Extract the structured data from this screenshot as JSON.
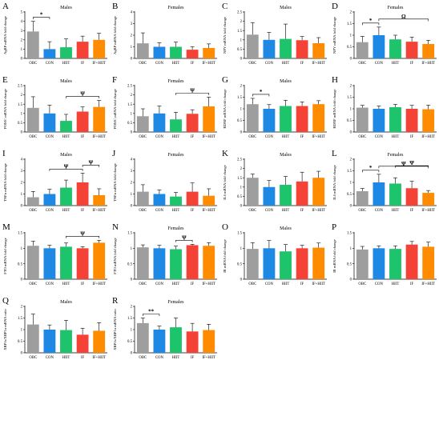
{
  "colors": {
    "OBC": "#9e9e9e",
    "CON": "#1e88e5",
    "HIIT": "#1ec46b",
    "IF": "#f44336",
    "IF+HIIT": "#ff8c00"
  },
  "chart_data": [
    {
      "type": "bar",
      "letter": "A",
      "title": "Males",
      "ylabel": "AgRP mRNA fold change",
      "ylim": [
        0,
        5
      ],
      "yticks": [
        0,
        1,
        2,
        3,
        4,
        5
      ],
      "categories": [
        "OBC",
        "CON",
        "HIIT",
        "IF",
        "IF+HIIT"
      ],
      "values": [
        2.9,
        1.0,
        1.2,
        1.8,
        2.0
      ],
      "errors": [
        1.1,
        0.8,
        0.9,
        0.6,
        0.7
      ],
      "annotations": [
        {
          "from": 0,
          "to": 1,
          "label": "*"
        }
      ]
    },
    {
      "type": "bar",
      "letter": "B",
      "title": "Females",
      "ylabel": "AgRP mRNA fold change",
      "ylim": [
        0,
        4
      ],
      "yticks": [
        0,
        1,
        2,
        3,
        4
      ],
      "categories": [
        "OBC",
        "CON",
        "HIIT",
        "IF",
        "IF+HIIT"
      ],
      "values": [
        1.3,
        1.0,
        1.0,
        0.75,
        0.9
      ],
      "errors": [
        0.9,
        0.35,
        0.4,
        0.25,
        0.35
      ],
      "annotations": []
    },
    {
      "type": "bar",
      "letter": "C",
      "title": "Males",
      "ylabel": "NPY mRNA fold change",
      "ylim": [
        0,
        2.5
      ],
      "yticks": [
        0,
        0.5,
        1,
        1.5,
        2,
        2.5
      ],
      "categories": [
        "OBC",
        "CON",
        "HIIT",
        "IF",
        "IF+HIIT"
      ],
      "values": [
        1.28,
        1.0,
        1.05,
        0.98,
        0.82
      ],
      "errors": [
        0.65,
        0.4,
        0.8,
        0.2,
        0.3
      ],
      "annotations": []
    },
    {
      "type": "bar",
      "letter": "D",
      "title": "Females",
      "ylabel": "NPY mRNA fold change",
      "ylim": [
        0,
        2
      ],
      "yticks": [
        0,
        0.5,
        1,
        1.5,
        2
      ],
      "categories": [
        "OBC",
        "CON",
        "HIIT",
        "IF",
        "IF+HIIT"
      ],
      "values": [
        0.7,
        1.0,
        0.82,
        0.72,
        0.62
      ],
      "errors": [
        0.25,
        0.35,
        0.18,
        0.2,
        0.16
      ],
      "annotations": [
        {
          "from": 0,
          "to": 1,
          "label": "*"
        },
        {
          "from": 1,
          "to": 4,
          "label": "Ω"
        }
      ]
    },
    {
      "type": "bar",
      "letter": "E",
      "title": "Males",
      "ylabel": "POMC mRNA fold change",
      "ylim": [
        0,
        2.5
      ],
      "yticks": [
        0,
        0.5,
        1,
        1.5,
        2,
        2.5
      ],
      "categories": [
        "OBC",
        "CON",
        "HIIT",
        "IF",
        "IF+HIIT"
      ],
      "values": [
        1.3,
        1.0,
        0.6,
        1.1,
        1.35
      ],
      "errors": [
        0.6,
        0.45,
        0.35,
        0.25,
        0.35
      ],
      "annotations": [
        {
          "from": 2,
          "to": 4,
          "label": "Ψ"
        }
      ]
    },
    {
      "type": "bar",
      "letter": "F",
      "title": "Females",
      "ylabel": "POMC mRNA fold change",
      "ylim": [
        0,
        2.5
      ],
      "yticks": [
        0,
        0.5,
        1,
        1.5,
        2,
        2.5
      ],
      "categories": [
        "OBC",
        "CON",
        "HIIT",
        "IF",
        "IF+HIIT"
      ],
      "values": [
        0.85,
        1.0,
        0.68,
        0.98,
        1.38
      ],
      "errors": [
        0.4,
        0.4,
        0.38,
        0.22,
        0.5
      ],
      "annotations": [
        {
          "from": 2,
          "to": 4,
          "label": "Ψ"
        }
      ]
    },
    {
      "type": "bar",
      "letter": "G",
      "title": "Males",
      "ylabel": "BDNF mRNA fold change",
      "ylim": [
        0,
        2
      ],
      "yticks": [
        0,
        0.5,
        1,
        1.5,
        2
      ],
      "categories": [
        "OBC",
        "CON",
        "HIIT",
        "IF",
        "IF+HIIT"
      ],
      "values": [
        1.2,
        1.0,
        1.12,
        1.12,
        1.2
      ],
      "errors": [
        0.25,
        0.18,
        0.25,
        0.18,
        0.15
      ],
      "annotations": [
        {
          "from": 0,
          "to": 1,
          "label": "*"
        }
      ]
    },
    {
      "type": "bar",
      "letter": "H",
      "title": "",
      "ylabel": "BDNF mRNA fold change",
      "ylim": [
        0,
        2
      ],
      "yticks": [
        0,
        0.5,
        1,
        1.5,
        2
      ],
      "categories": [
        "OBC",
        "CON",
        "HIIT",
        "IF",
        "IF+HIIT"
      ],
      "values": [
        1.05,
        1.0,
        1.07,
        1.0,
        0.98
      ],
      "errors": [
        0.1,
        0.12,
        0.12,
        0.15,
        0.18
      ],
      "annotations": []
    },
    {
      "type": "bar",
      "letter": "I",
      "title": "Males",
      "ylabel": "TNFα mRNA fold change",
      "ylim": [
        0,
        4
      ],
      "yticks": [
        0,
        1,
        2,
        3,
        4
      ],
      "categories": [
        "OBC",
        "CON",
        "HIIT",
        "IF",
        "IF+HIIT"
      ],
      "values": [
        0.72,
        1.0,
        1.55,
        2.0,
        0.9
      ],
      "errors": [
        0.5,
        0.4,
        0.65,
        0.8,
        0.55
      ],
      "annotations": [
        {
          "from": 1,
          "to": 3,
          "label": "Ψ"
        },
        {
          "from": 3,
          "to": 4,
          "label": "Ψ"
        }
      ]
    },
    {
      "type": "bar",
      "letter": "J",
      "title": "Females",
      "ylabel": "TNFα mRNA fold change",
      "ylim": [
        0,
        4
      ],
      "yticks": [
        0,
        1,
        2,
        3,
        4
      ],
      "categories": [
        "OBC",
        "CON",
        "HIIT",
        "IF",
        "IF+HIIT"
      ],
      "values": [
        1.2,
        1.0,
        0.78,
        1.2,
        0.85
      ],
      "errors": [
        0.6,
        0.35,
        0.35,
        0.75,
        0.6
      ],
      "annotations": []
    },
    {
      "type": "bar",
      "letter": "K",
      "title": "Males",
      "ylabel": "IL6 mRNA fold change",
      "ylim": [
        0,
        2.5
      ],
      "yticks": [
        0,
        0.5,
        1,
        1.5,
        2,
        2.5
      ],
      "categories": [
        "OBC",
        "CON",
        "HIIT",
        "IF",
        "IF+HIIT"
      ],
      "values": [
        1.5,
        1.0,
        1.12,
        1.3,
        1.5
      ],
      "errors": [
        0.2,
        0.35,
        0.45,
        0.5,
        0.35
      ],
      "annotations": []
    },
    {
      "type": "bar",
      "letter": "L",
      "title": "Females",
      "ylabel": "IL6 mRNA fold change",
      "ylim": [
        0,
        2
      ],
      "yticks": [
        0,
        0.5,
        1,
        1.5,
        2
      ],
      "categories": [
        "OBC",
        "CON",
        "HIIT",
        "IF",
        "IF+HIIT"
      ],
      "values": [
        0.62,
        1.0,
        0.95,
        0.75,
        0.55
      ],
      "errors": [
        0.12,
        0.35,
        0.25,
        0.3,
        0.1
      ],
      "annotations": [
        {
          "from": 0,
          "to": 1,
          "label": "*"
        },
        {
          "from": 1,
          "to": 4,
          "label": "Ψ"
        },
        {
          "from": 2,
          "to": 4,
          "label": "Ψ"
        }
      ]
    },
    {
      "type": "bar",
      "letter": "M",
      "title": "",
      "ylabel": "FTO mRNA fold change",
      "ylim": [
        0,
        1.5
      ],
      "yticks": [
        0,
        0.5,
        1,
        1.5
      ],
      "categories": [
        "OBC",
        "CON",
        "HIIT",
        "IF",
        "IF+HIIT"
      ],
      "values": [
        1.08,
        1.0,
        1.05,
        1.0,
        1.18
      ],
      "errors": [
        0.15,
        0.1,
        0.12,
        0.05,
        0.08
      ],
      "annotations": [
        {
          "from": 2,
          "to": 4,
          "label": "Ψ"
        }
      ]
    },
    {
      "type": "bar",
      "letter": "N",
      "title": "Females",
      "ylabel": "FTO mRNA fold change",
      "ylim": [
        0,
        1.5
      ],
      "yticks": [
        0,
        0.5,
        1,
        1.5
      ],
      "categories": [
        "OBC",
        "CON",
        "HIIT",
        "IF",
        "IF+HIIT"
      ],
      "values": [
        1.03,
        1.0,
        0.97,
        1.1,
        1.08
      ],
      "errors": [
        0.08,
        0.1,
        0.1,
        0.03,
        0.1
      ],
      "annotations": [
        {
          "from": 2,
          "to": 3,
          "label": "Ψ"
        }
      ]
    },
    {
      "type": "bar",
      "letter": "O",
      "title": "Males",
      "ylabel": "IR mRNA fold change",
      "ylim": [
        0,
        1.5
      ],
      "yticks": [
        0,
        0.5,
        1,
        1.5
      ],
      "categories": [
        "OBC",
        "CON",
        "HIIT",
        "IF",
        "IF+HIIT"
      ],
      "values": [
        0.98,
        1.0,
        0.9,
        1.0,
        1.02
      ],
      "errors": [
        0.2,
        0.25,
        0.22,
        0.1,
        0.15
      ],
      "annotations": []
    },
    {
      "type": "bar",
      "letter": "P",
      "title": "",
      "ylabel": "IR mRNA fold change",
      "ylim": [
        0,
        1.5
      ],
      "yticks": [
        0,
        0.5,
        1,
        1.5
      ],
      "categories": [
        "OBC",
        "CON",
        "HIIT",
        "IF",
        "IF+HIIT"
      ],
      "values": [
        0.96,
        1.0,
        0.98,
        1.12,
        1.05
      ],
      "errors": [
        0.1,
        0.08,
        0.1,
        0.1,
        0.15
      ],
      "annotations": []
    },
    {
      "type": "bar",
      "letter": "Q",
      "title": "Males",
      "ylabel": "XBP1s/XBP1u mRNA ratio",
      "ylim": [
        0,
        2
      ],
      "yticks": [
        0,
        0.5,
        1,
        1.5,
        2
      ],
      "categories": [
        "OBC",
        "CON",
        "HIIT",
        "IF",
        "IF+HIIT"
      ],
      "values": [
        1.22,
        1.0,
        0.98,
        0.78,
        0.95
      ],
      "errors": [
        0.45,
        0.2,
        0.42,
        0.28,
        0.35
      ],
      "annotations": []
    },
    {
      "type": "bar",
      "letter": "R",
      "title": "Females",
      "ylabel": "XBP1s/XBP1u mRNA ratio",
      "ylim": [
        0,
        2
      ],
      "yticks": [
        0,
        0.5,
        1,
        1.5,
        2
      ],
      "categories": [
        "OBC",
        "CON",
        "HIIT",
        "IF",
        "IF+HIIT"
      ],
      "values": [
        1.28,
        1.0,
        1.1,
        0.92,
        0.98
      ],
      "errors": [
        0.22,
        0.15,
        0.4,
        0.35,
        0.25
      ],
      "annotations": [
        {
          "from": 0,
          "to": 1,
          "label": "**"
        }
      ]
    }
  ]
}
